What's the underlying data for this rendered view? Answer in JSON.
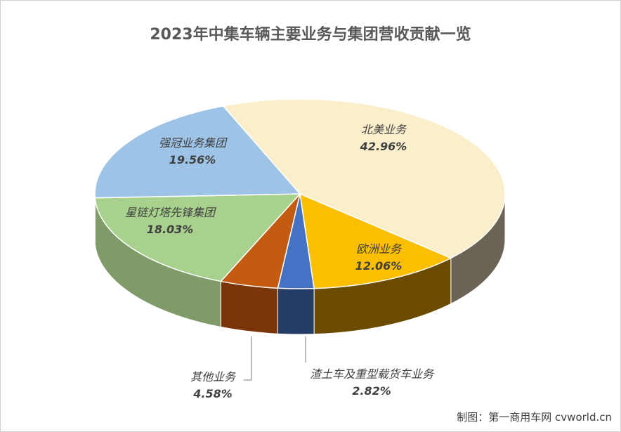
{
  "chart_data": {
    "type": "pie",
    "title": "2023年中集车辆主要业务与集团营收贡献一览",
    "slices": [
      {
        "name": "北美业务",
        "value": 42.96,
        "label": "42.96%",
        "color": "#FBEFCB",
        "side": "#6b6355"
      },
      {
        "name": "欧洲业务",
        "value": 12.06,
        "label": "12.06%",
        "color": "#FBBF00",
        "side": "#6b4b00"
      },
      {
        "name": "渣土车及重型载货车业务",
        "value": 2.82,
        "label": "2.82%",
        "color": "#4472C4",
        "side": "#243d66"
      },
      {
        "name": "其他业务",
        "value": 4.58,
        "label": "4.58%",
        "color": "#C55A11",
        "side": "#7a3509"
      },
      {
        "name": "星链灯塔先锋集团",
        "value": 18.03,
        "label": "18.03%",
        "color": "#A9D18E",
        "side": "#7e9b69"
      },
      {
        "name": "强冠业务集团",
        "value": 19.56,
        "label": "19.56%",
        "color": "#9DC3E6",
        "side": "#6f8ea8"
      }
    ]
  },
  "credit": "制图：第一商用车网 cvworld.cn"
}
